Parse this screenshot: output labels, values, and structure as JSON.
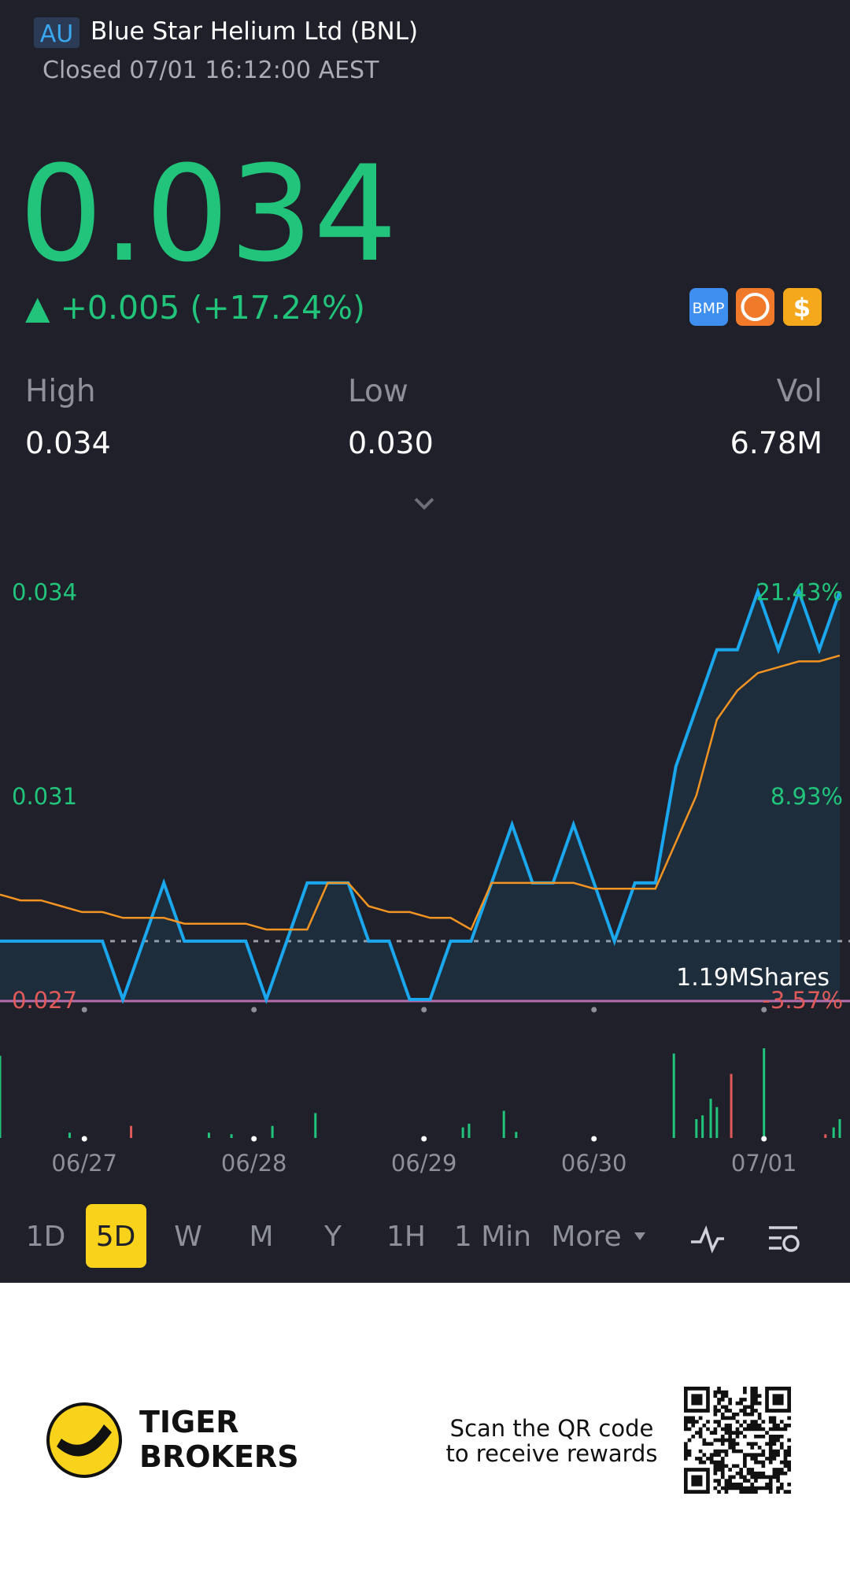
{
  "header": {
    "market": "AU",
    "title": "Blue Star Helium Ltd (BNL)",
    "status": "Closed 07/01 16:12:00 AEST"
  },
  "quote": {
    "price": "0.034",
    "change": "▲ +0.005 (+17.24%)",
    "badges": [
      "BMP",
      "$"
    ]
  },
  "stats": [
    {
      "label": "High",
      "value": "0.034"
    },
    {
      "label": "Low",
      "value": "0.030"
    },
    {
      "label": "Vol",
      "value": "6.78M"
    }
  ],
  "chart_data": {
    "type": "line",
    "xlim": [
      0,
      41
    ],
    "xticks": [
      {
        "value": 4.12,
        "label": "06/27"
      },
      {
        "value": 12.4,
        "label": "06/28"
      },
      {
        "value": 20.7,
        "label": "06/29"
      },
      {
        "value": 29.0,
        "label": "06/30"
      },
      {
        "value": 37.3,
        "label": "07/01"
      }
    ],
    "ylim": [
      0.027,
      0.034
    ],
    "yticks": [
      0.034,
      {
        "value": 0.0305,
        "label": "0.031"
      },
      0.027
    ],
    "y2lim": [
      -3.57,
      21.43
    ],
    "y2ticks": [
      {
        "value": 21.43,
        "label": "21.43%"
      },
      {
        "value": 8.93,
        "label": "8.93%"
      },
      {
        "value": -3.57,
        "label": "-3.57%"
      }
    ],
    "prev_close": 0.028,
    "series": [
      {
        "color": "#1aa7ee",
        "values": [
          0.028,
          0.028,
          0.028,
          0.028,
          0.028,
          0.028,
          0.027,
          0.028,
          0.029,
          0.028,
          0.028,
          0.028,
          0.028,
          0.027,
          0.028,
          0.029,
          0.029,
          0.029,
          0.028,
          0.028,
          0.027,
          0.027,
          0.028,
          0.028,
          0.029,
          0.03,
          0.029,
          0.029,
          0.03,
          0.029,
          0.028,
          0.029,
          0.029,
          0.031,
          0.032,
          0.033,
          0.033,
          0.034,
          0.033,
          0.034,
          0.033,
          0.034
        ]
      },
      {
        "color": "#f39422",
        "values": [
          0.0288,
          0.0287,
          0.0287,
          0.0286,
          0.0285,
          0.0285,
          0.0284,
          0.0284,
          0.0284,
          0.0283,
          0.0283,
          0.0283,
          0.0283,
          0.0282,
          0.0282,
          0.0282,
          0.029,
          0.029,
          0.0286,
          0.0285,
          0.0285,
          0.0284,
          0.0284,
          0.0282,
          0.029,
          0.029,
          0.029,
          0.029,
          0.029,
          0.0289,
          0.0289,
          0.0289,
          0.0289,
          0.0297,
          0.0305,
          0.0318,
          0.0323,
          0.0326,
          0.0327,
          0.0328,
          0.0328,
          0.0329
        ]
      }
    ],
    "volume": {
      "label": "1.19MShares",
      "ylim": [
        0,
        1.19
      ],
      "x": [
        0,
        3.4,
        6.4,
        10.2,
        11.3,
        13.3,
        15.4,
        22.6,
        22.9,
        24.6,
        25.2,
        32.9,
        34,
        34.3,
        34.7,
        35,
        35.7,
        37.3,
        40.3,
        40.7,
        41
      ],
      "values": [
        1.09,
        0.07,
        0.16,
        0.07,
        0.05,
        0.16,
        0.33,
        0.14,
        0.19,
        0.36,
        0.08,
        1.12,
        0.25,
        0.3,
        0.52,
        0.41,
        0.85,
        1.19,
        0.05,
        0.14,
        0.25
      ],
      "colors": [
        "#21c47a",
        "#21c47a",
        "#e05a5a",
        "#21c47a",
        "#21c47a",
        "#21c47a",
        "#21c47a",
        "#21c47a",
        "#21c47a",
        "#21c47a",
        "#21c47a",
        "#21c47a",
        "#21c47a",
        "#21c47a",
        "#21c47a",
        "#21c47a",
        "#e05a5a",
        "#21c47a",
        "#e05a5a",
        "#21c47a",
        "#21c47a"
      ]
    }
  },
  "tabs": [
    "1D",
    "5D",
    "W",
    "M",
    "Y",
    "1H",
    "1 Min",
    "More"
  ],
  "active_tab": 1,
  "footer": {
    "brand": [
      "TIGER",
      "BROKERS"
    ],
    "cta": [
      "Scan the QR code",
      "to receive rewards"
    ]
  }
}
